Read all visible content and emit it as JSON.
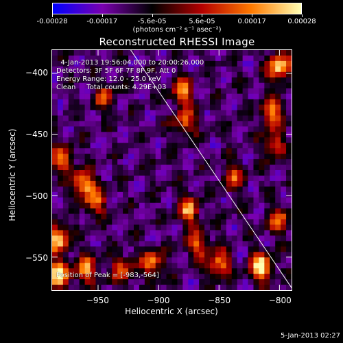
{
  "colorbar": {
    "tick_labels": [
      "-0.00028",
      "-0.00017",
      "-5.6e-05",
      "5.6e-05",
      "0.00017",
      "0.00028"
    ],
    "units": "(photons cm⁻² s⁻¹ asec⁻²)",
    "colors": [
      "#0000ff",
      "#7a00b0",
      "#000000",
      "#b40000",
      "#ff7a00",
      "#ffffb4"
    ]
  },
  "plot": {
    "title": "Reconstructed RHESSI Image",
    "info_lines": [
      "  4-Jan-2013 19:56:04.000 to 20:00:26.000",
      "Detectors: 3F 5F 6F 7F 8F 9F, Att 0",
      "Energy Range: 12.0 - 25.0 keV",
      "Clean     Total counts: 4.29E+03"
    ],
    "peak_text": "Position of Peak = [-983,-564]",
    "xlabel": "Heliocentric X (arcsec)",
    "ylabel": "Heliocentric Y (arcsec)"
  },
  "chart_data": {
    "type": "heatmap",
    "title": "Reconstructed RHESSI Image",
    "xlabel": "Heliocentric X (arcsec)",
    "ylabel": "Heliocentric Y (arcsec)",
    "xlim": [
      -988,
      -790
    ],
    "ylim": [
      -577,
      -381
    ],
    "xticks": [
      -950,
      -900,
      -850,
      -800
    ],
    "xtick_labels": [
      "−950",
      "−900",
      "−850",
      "−800"
    ],
    "yticks": [
      -400,
      -450,
      -500,
      -550
    ],
    "ytick_labels": [
      "−400",
      "−450",
      "−500",
      "−550"
    ],
    "color_range": [
      -0.00028,
      0.00028
    ],
    "limb_line": [
      [
        -923,
        -381
      ],
      [
        -790,
        -575
      ]
    ],
    "peak_position": [
      -983,
      -564
    ],
    "hot_spots": [
      {
        "x": -800,
        "y": -395,
        "v": 0.00026
      },
      {
        "x": -806,
        "y": -432,
        "v": 0.00018
      },
      {
        "x": -805,
        "y": -458,
        "v": 0.00012
      },
      {
        "x": -980,
        "y": -470,
        "v": 0.00016
      },
      {
        "x": -962,
        "y": -490,
        "v": 0.00022
      },
      {
        "x": -952,
        "y": -505,
        "v": 0.00014
      },
      {
        "x": -983,
        "y": -535,
        "v": 0.00024
      },
      {
        "x": -983,
        "y": -564,
        "v": 0.00028
      },
      {
        "x": -960,
        "y": -560,
        "v": 0.00018
      },
      {
        "x": -930,
        "y": -560,
        "v": 0.00012
      },
      {
        "x": -905,
        "y": -555,
        "v": 0.00016
      },
      {
        "x": -875,
        "y": -512,
        "v": 0.00018
      },
      {
        "x": -868,
        "y": -540,
        "v": 0.00014
      },
      {
        "x": -850,
        "y": -556,
        "v": 0.00018
      },
      {
        "x": -815,
        "y": -558,
        "v": 0.00028
      },
      {
        "x": -880,
        "y": -415,
        "v": 0.00016
      },
      {
        "x": -878,
        "y": -440,
        "v": 0.00012
      },
      {
        "x": -945,
        "y": -420,
        "v": 8e-05
      },
      {
        "x": -838,
        "y": -485,
        "v": 0.0001
      },
      {
        "x": -800,
        "y": -520,
        "v": 0.00012
      }
    ],
    "grid": false
  },
  "footer": {
    "timestamp": "5-Jan-2013 02:27"
  }
}
